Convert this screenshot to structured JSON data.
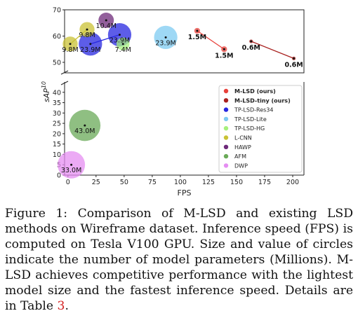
{
  "chart_data": {
    "type": "scatter",
    "subtype": "bubble",
    "broken_y_axis": true,
    "xlabel": "FPS",
    "ylabel": "sAP",
    "ylabel_superscript": "10",
    "xlim": [
      -3,
      210
    ],
    "x_ticks": [
      0,
      25,
      50,
      75,
      100,
      125,
      150,
      175,
      200
    ],
    "y_upper_range": [
      46,
      70
    ],
    "y_upper_ticks": [
      50,
      60,
      70
    ],
    "y_lower_range": [
      0,
      45
    ],
    "y_lower_ticks": [
      0,
      5,
      10,
      15,
      20,
      25,
      30,
      35,
      40
    ],
    "legend_position": "lower right",
    "series": [
      {
        "name": "M-LSD (ours)",
        "color": "#e8413b",
        "bold": true,
        "line": true,
        "points": [
          {
            "x": 115,
            "y": 62.0,
            "params": 1.5,
            "label": "1.5M"
          },
          {
            "x": 139,
            "y": 55.0,
            "params": 1.5,
            "label": "1.5M"
          }
        ]
      },
      {
        "name": "M-LSD-tiny (ours)",
        "color": "#a8201e",
        "bold": true,
        "line": true,
        "points": [
          {
            "x": 163,
            "y": 58.0,
            "params": 0.6,
            "label": "0.6M"
          },
          {
            "x": 201,
            "y": 51.5,
            "params": 0.6,
            "label": "0.6M"
          }
        ]
      },
      {
        "name": "TP-LSD-Res34",
        "color": "#2727e0",
        "line": true,
        "points": [
          {
            "x": 20,
            "y": 57.0,
            "params": 23.9,
            "label": "23.9M"
          },
          {
            "x": 46,
            "y": 60.5,
            "params": 23.9,
            "label": "23.9M"
          }
        ]
      },
      {
        "name": "TP-LSD-Lite",
        "color": "#7ecbf2",
        "points": [
          {
            "x": 87,
            "y": 59.5,
            "params": 23.9,
            "label": "23.9M"
          }
        ]
      },
      {
        "name": "TP-LSD-HG",
        "color": "#a6f07c",
        "points": [
          {
            "x": 49,
            "y": 57.0,
            "params": 7.4,
            "label": "7.4M"
          }
        ]
      },
      {
        "name": "L-CNN",
        "color": "#c9c234",
        "line": true,
        "points": [
          {
            "x": 2,
            "y": 57.0,
            "params": 9.8,
            "label": "9.8M"
          },
          {
            "x": 17,
            "y": 62.5,
            "params": 9.8,
            "label": "9.8M"
          }
        ]
      },
      {
        "name": "HAWP",
        "color": "#6e2a7a",
        "points": [
          {
            "x": 34,
            "y": 66.0,
            "params": 10.4,
            "label": "10.4M"
          }
        ]
      },
      {
        "name": "AFM",
        "color": "#6aaa58",
        "points": [
          {
            "x": 15,
            "y": 24.0,
            "params": 43.0,
            "label": "43.0M"
          }
        ]
      },
      {
        "name": "DWP",
        "color": "#e58ef2",
        "points": [
          {
            "x": 3,
            "y": 5.0,
            "params": 33.0,
            "label": "33.0M"
          }
        ]
      }
    ]
  },
  "caption": {
    "text": "Figure 1: Comparison of M-LSD and existing LSD methods on Wireframe dataset. Inference speed (FPS) is computed on Tesla V100 GPU. Size and value of circles indicate the number of model parameters (Millions). M-LSD achieves competitive performance with the lightest model size and the fastest inference speed. Details are in Table ",
    "ref": "3",
    "tail": "."
  }
}
